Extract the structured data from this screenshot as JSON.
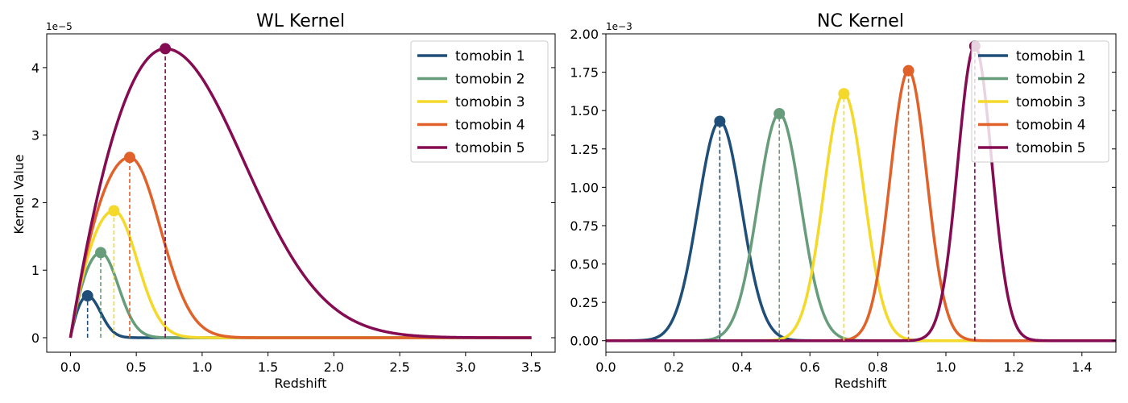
{
  "chart_data": [
    {
      "type": "line",
      "title": "WL Kernel",
      "xlabel": "Redshift",
      "ylabel": "Kernel Value",
      "y_exponent_label": "1e−5",
      "xlim": [
        -0.18,
        3.68
      ],
      "ylim": [
        -0.215,
        4.5
      ],
      "xticks": [
        0,
        0.5,
        1.0,
        1.5,
        2.0,
        2.5,
        3.0,
        3.5
      ],
      "xtick_labels": [
        "0.0",
        "0.5",
        "1.0",
        "1.5",
        "2.0",
        "2.5",
        "3.0",
        "3.5"
      ],
      "yticks": [
        0,
        1,
        2,
        3,
        4
      ],
      "ytick_labels": [
        "0",
        "1",
        "2",
        "3",
        "4"
      ],
      "y_scale_note": "values in units of 1e-5",
      "x_max": 3.5,
      "legend_position": "upper-right",
      "series": [
        {
          "name": "tomobin 1",
          "color": "#1f4e79",
          "peak_x": 0.13,
          "peak_y": 0.62,
          "rise_shape": 1.8,
          "fall_scale": 0.14
        },
        {
          "name": "tomobin 2",
          "color": "#679d7a",
          "peak_x": 0.23,
          "peak_y": 1.26,
          "rise_shape": 1.8,
          "fall_scale": 0.19
        },
        {
          "name": "tomobin 3",
          "color": "#f4d92a",
          "peak_x": 0.33,
          "peak_y": 1.88,
          "rise_shape": 1.8,
          "fall_scale": 0.25
        },
        {
          "name": "tomobin 4",
          "color": "#e0622a",
          "peak_x": 0.45,
          "peak_y": 2.67,
          "rise_shape": 1.8,
          "fall_scale": 0.33
        },
        {
          "name": "tomobin 5",
          "color": "#850b52",
          "peak_x": 0.72,
          "peak_y": 4.28,
          "rise_shape": 2.2,
          "fall_scale": 0.85
        }
      ]
    },
    {
      "type": "line",
      "title": "NC Kernel",
      "xlabel": "Redshift",
      "ylabel": "",
      "y_exponent_label": "1e−3",
      "xlim": [
        0,
        1.5
      ],
      "ylim": [
        -0.075,
        2.0
      ],
      "xticks": [
        0,
        0.2,
        0.4,
        0.6,
        0.8,
        1.0,
        1.2,
        1.4
      ],
      "xtick_labels": [
        "0.0",
        "0.2",
        "0.4",
        "0.6",
        "0.8",
        "1.0",
        "1.2",
        "1.4"
      ],
      "yticks": [
        0,
        0.25,
        0.5,
        0.75,
        1.0,
        1.25,
        1.5,
        1.75,
        2.0
      ],
      "ytick_labels": [
        "0.00",
        "0.25",
        "0.50",
        "0.75",
        "1.00",
        "1.25",
        "1.50",
        "1.75",
        "2.00"
      ],
      "y_scale_note": "values in units of 1e-3",
      "legend_position": "upper-right",
      "series": [
        {
          "name": "tomobin 1",
          "color": "#1f4e79",
          "peak_x": 0.335,
          "peak_y": 1.43,
          "sigma": 0.064
        },
        {
          "name": "tomobin 2",
          "color": "#679d7a",
          "peak_x": 0.51,
          "peak_y": 1.48,
          "sigma": 0.063
        },
        {
          "name": "tomobin 3",
          "color": "#f4d92a",
          "peak_x": 0.7,
          "peak_y": 1.61,
          "sigma": 0.059
        },
        {
          "name": "tomobin 4",
          "color": "#e0622a",
          "peak_x": 0.89,
          "peak_y": 1.76,
          "sigma": 0.054
        },
        {
          "name": "tomobin 5",
          "color": "#850b52",
          "peak_x": 1.085,
          "peak_y": 1.92,
          "sigma": 0.05
        }
      ]
    }
  ]
}
